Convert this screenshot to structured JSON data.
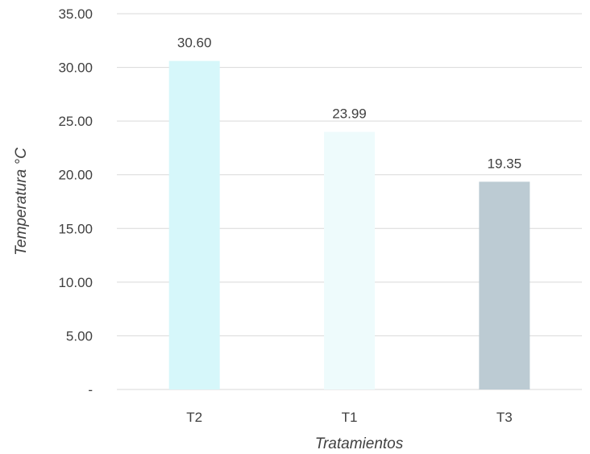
{
  "chart_data": {
    "type": "bar",
    "title": "",
    "xlabel": "Tratamientos",
    "ylabel": "Temperatura °C",
    "ylim": [
      0,
      35
    ],
    "y_ticks": [
      {
        "value": 0,
        "label": "-"
      },
      {
        "value": 5,
        "label": "5.00"
      },
      {
        "value": 10,
        "label": "10.00"
      },
      {
        "value": 15,
        "label": "15.00"
      },
      {
        "value": 20,
        "label": "20.00"
      },
      {
        "value": 25,
        "label": "25.00"
      },
      {
        "value": 30,
        "label": "30.00"
      },
      {
        "value": 35,
        "label": "35.00"
      }
    ],
    "grid": true,
    "legend": "none",
    "categories": [
      "T2",
      "T1",
      "T3"
    ],
    "values": [
      30.6,
      23.99,
      19.35
    ],
    "value_labels": [
      "30.60",
      "23.99",
      "19.35"
    ],
    "bar_colors": [
      "#d6f7fa",
      "#eefbfc",
      "#bccbd3"
    ],
    "gridline_color": "#d9d9d9",
    "text_color": "#404040"
  }
}
